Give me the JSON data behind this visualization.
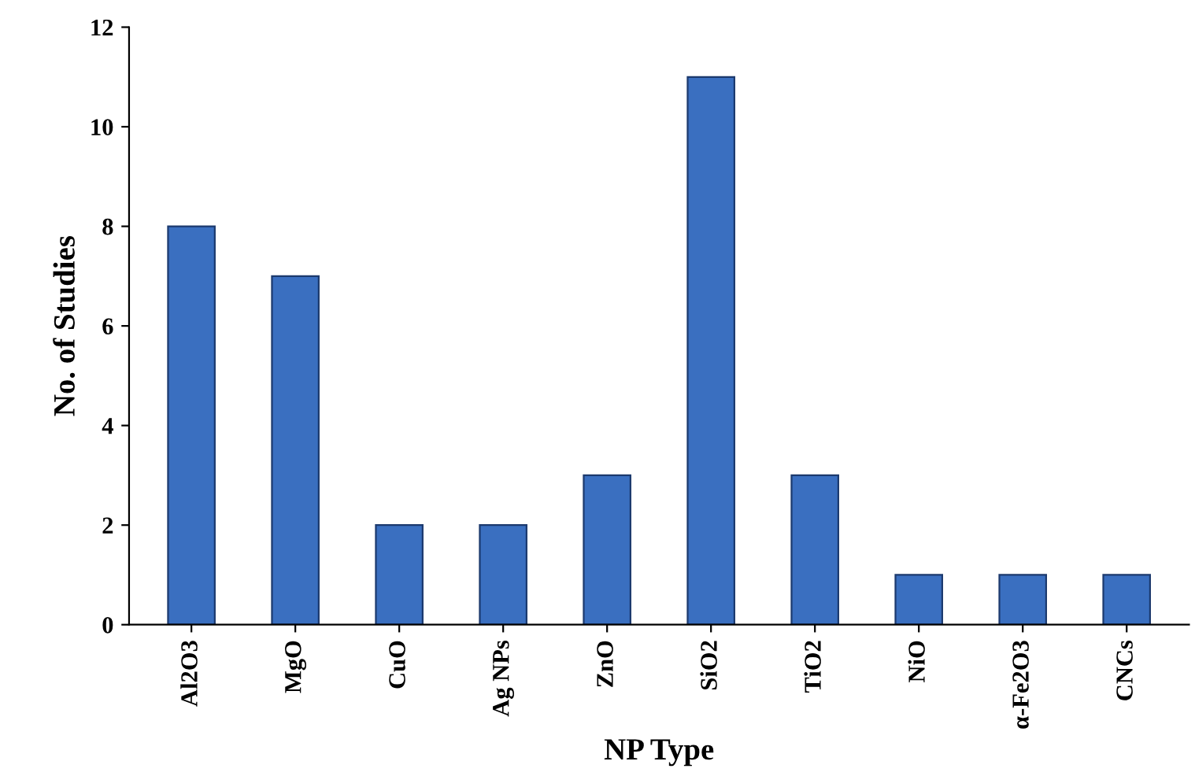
{
  "chart_data": {
    "type": "bar",
    "xlabel": "NP Type",
    "ylabel": "No. of Studies",
    "categories": [
      "Al2O3",
      "MgO",
      "CuO",
      "Ag NPs",
      "ZnO",
      "SiO2",
      "TiO2",
      "NiO",
      "α-Fe2O3",
      "CNCs"
    ],
    "values": [
      8,
      7,
      2,
      2,
      3,
      11,
      3,
      1,
      1,
      1
    ],
    "color": "#3a6fc0",
    "ylim": [
      0,
      12
    ],
    "yticks": [
      0,
      2,
      4,
      6,
      8,
      10,
      12
    ],
    "grid": false
  }
}
